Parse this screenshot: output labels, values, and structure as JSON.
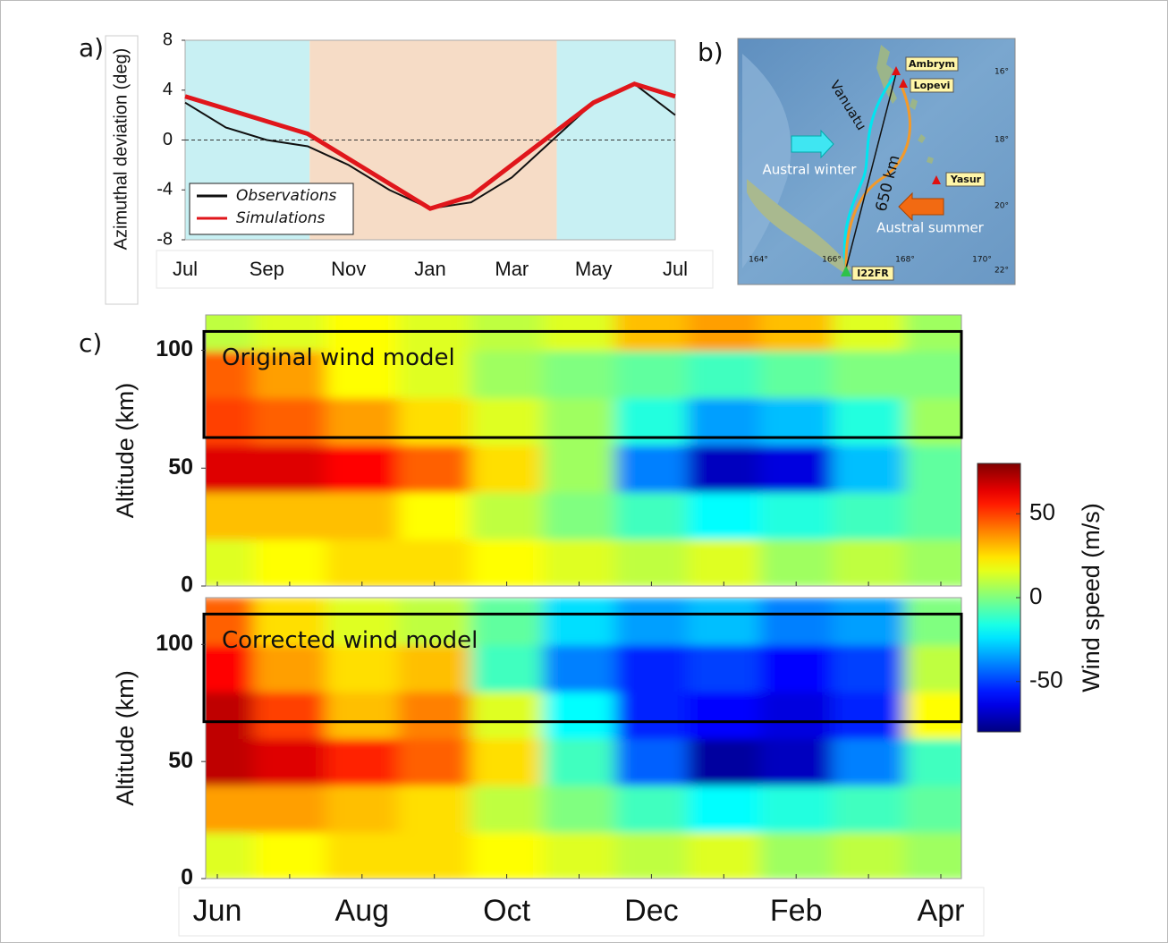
{
  "panel_labels": [
    "a)",
    "b)",
    "c)"
  ],
  "chart_data": [
    {
      "type": "line",
      "ylabel": "Azimuthal deviation (deg)",
      "categories": [
        "Jul",
        null,
        "Sep",
        null,
        "Nov",
        null,
        "Jan",
        null,
        "Mar",
        null,
        "May",
        null,
        "Jul"
      ],
      "ylim": [
        -8,
        8
      ],
      "yticks": [
        -8,
        -4,
        0,
        4,
        8
      ],
      "reference_line": 0,
      "shaded_regions": [
        {
          "start": 0,
          "end": 3.05,
          "color": "#c8f0f3"
        },
        {
          "start": 3.05,
          "end": 9.1,
          "color": "#f6dcc6"
        },
        {
          "start": 9.1,
          "end": 12,
          "color": "#c8f0f3"
        }
      ],
      "legend": "lower left",
      "series": [
        {
          "name": "Observations",
          "color": "#111111",
          "values": [
            3,
            1,
            0,
            -0.5,
            -2,
            -4,
            -5.5,
            -5,
            -3,
            0,
            3,
            4.5,
            2
          ]
        },
        {
          "name": "Simulations",
          "color": "#e0161b",
          "values": [
            3.5,
            2.5,
            1.5,
            0.5,
            -1.5,
            -3.5,
            -5.5,
            -4.5,
            -2,
            0.5,
            3,
            4.5,
            3.5
          ]
        }
      ]
    },
    {
      "type": "heatmap",
      "title": "Original wind model",
      "ylabel": "Altitude (km)",
      "ylim": [
        0,
        115
      ],
      "yticks": [
        0,
        50,
        100
      ],
      "box_ylim": [
        63,
        108
      ],
      "y": [
        10,
        30,
        50,
        70,
        90,
        110
      ],
      "values": [
        [
          15,
          20,
          25,
          25,
          20,
          15,
          10,
          15,
          5,
          10,
          5
        ],
        [
          30,
          30,
          30,
          20,
          10,
          0,
          -10,
          -20,
          -15,
          -10,
          -5
        ],
        [
          65,
          65,
          60,
          45,
          25,
          5,
          -40,
          -70,
          -65,
          -30,
          -5
        ],
        [
          50,
          45,
          35,
          25,
          15,
          5,
          -15,
          -35,
          -30,
          -15,
          5
        ],
        [
          45,
          35,
          20,
          15,
          5,
          0,
          -5,
          -10,
          -5,
          0,
          0
        ],
        [
          10,
          15,
          20,
          15,
          10,
          15,
          30,
          35,
          30,
          15,
          5
        ]
      ],
      "colorbar": {
        "label": "Wind speed (m/s)",
        "zlim": [
          -80,
          80
        ],
        "zticks": [
          -50,
          0,
          50
        ],
        "colormap": "jet"
      }
    },
    {
      "type": "heatmap",
      "title": "Corrected wind model",
      "ylabel": "Altitude (km)",
      "ylim": [
        0,
        120
      ],
      "yticks": [
        0,
        50,
        100
      ],
      "box_ylim": [
        67,
        113
      ],
      "categories": [
        "Jun",
        null,
        "Aug",
        null,
        "Oct",
        null,
        "Dec",
        null,
        "Feb",
        null,
        "Apr"
      ],
      "y": [
        10,
        30,
        50,
        70,
        90,
        110
      ],
      "values": [
        [
          15,
          20,
          25,
          25,
          20,
          15,
          10,
          15,
          5,
          10,
          5
        ],
        [
          35,
          35,
          30,
          25,
          10,
          0,
          -10,
          -20,
          -15,
          -10,
          -5
        ],
        [
          70,
          65,
          55,
          45,
          25,
          -10,
          -45,
          -75,
          -70,
          -40,
          -10
        ],
        [
          70,
          50,
          30,
          40,
          15,
          -20,
          -55,
          -60,
          -65,
          -55,
          20
        ],
        [
          60,
          35,
          25,
          30,
          -10,
          -40,
          -55,
          -50,
          -60,
          -50,
          10
        ],
        [
          45,
          25,
          15,
          10,
          -5,
          -25,
          -35,
          -30,
          -40,
          -35,
          0
        ]
      ]
    }
  ],
  "map": {
    "places": [
      "Ambrym",
      "Lopevi",
      "Yasur",
      "I22FR"
    ],
    "region": "Vanuatu",
    "distance": "650 km",
    "seasons": [
      "Austral winter",
      "Austral summer"
    ],
    "lon_labels": [
      "164°",
      "166°",
      "168°",
      "170°"
    ],
    "lat_labels": [
      "16°",
      "18°",
      "20°",
      "22°"
    ]
  }
}
